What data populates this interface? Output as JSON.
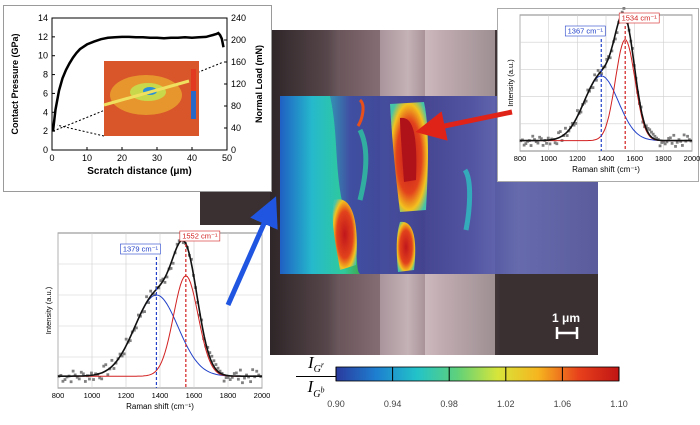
{
  "micrograph": {
    "scale_bar_label": "1 μm"
  },
  "colorbar": {
    "symbol_numerator": "I",
    "symbol_numerator_sub": "G",
    "symbol_numerator_sup": "r",
    "symbol_denominator": "I",
    "symbol_denominator_sub": "G",
    "symbol_denominator_sup": "b",
    "ticks": [
      "0.90",
      "0.94",
      "0.98",
      "1.02",
      "1.06",
      "1.10"
    ],
    "range": [
      0.9,
      1.1
    ],
    "colors": [
      "#2a3a9e",
      "#1e7fd0",
      "#22c3c9",
      "#5fd17a",
      "#d7e53a",
      "#f6b51f",
      "#e8411c",
      "#c01414"
    ]
  },
  "colors": {
    "fit_total": "#111111",
    "fit_red": "#d22020",
    "fit_blue": "#2342c8",
    "data_points": "#808080",
    "arrow_red": "#e02318",
    "arrow_blue": "#1f55e0"
  },
  "chart_data": [
    {
      "id": "scratch",
      "type": "line",
      "xlabel": "Scratch distance (μm)",
      "ylabel": "Contact Pressure (GPa)",
      "y2label": "Normal Load (mN)",
      "xlim": [
        0,
        50
      ],
      "ylim": [
        0,
        14
      ],
      "y2lim": [
        0,
        240
      ],
      "xticks": [
        "0",
        "10",
        "20",
        "30",
        "40",
        "50"
      ],
      "yticks": [
        "0",
        "2",
        "4",
        "6",
        "8",
        "10",
        "12",
        "14"
      ],
      "y2ticks": [
        "0",
        "40",
        "80",
        "120",
        "160",
        "200",
        "240"
      ],
      "series": [
        {
          "x": [
            0.3,
            1,
            2,
            3,
            4,
            5,
            6,
            7,
            8,
            10,
            12,
            14,
            16,
            18,
            20,
            22,
            24,
            26,
            28,
            30,
            32,
            34,
            36,
            38,
            40,
            42,
            44,
            45,
            46,
            47,
            47.5,
            48,
            48.5,
            49
          ],
          "y": [
            2.0,
            4.3,
            6.3,
            7.6,
            8.5,
            9.2,
            9.8,
            10.3,
            10.7,
            11.2,
            11.5,
            11.75,
            11.9,
            11.95,
            12.0,
            12.0,
            11.95,
            11.95,
            11.9,
            11.9,
            11.85,
            11.9,
            11.9,
            11.95,
            11.9,
            11.95,
            12.0,
            12.1,
            12.2,
            12.3,
            12.4,
            12.2,
            11.8,
            10.9
          ]
        }
      ],
      "grid": false
    },
    {
      "id": "raman_top",
      "type": "scatter",
      "xlabel": "Raman shift (cm⁻¹)",
      "ylabel": "Intensity (a.u.)",
      "xlim": [
        800,
        2000
      ],
      "xticks": [
        "800",
        "1000",
        "1200",
        "1400",
        "1600",
        "1800",
        "2000"
      ],
      "peak_labels": [
        {
          "text": "1367 cm⁻¹",
          "x": 1367,
          "series": "blue"
        },
        {
          "text": "1534 cm⁻¹",
          "x": 1534,
          "series": "red"
        }
      ],
      "components": [
        {
          "center": 1367,
          "fwhm": 280,
          "amplitude": 0.5
        },
        {
          "center": 1534,
          "fwhm": 160,
          "amplitude": 0.78
        }
      ],
      "grid": true
    },
    {
      "id": "raman_bottom",
      "type": "scatter",
      "xlabel": "Raman shift (cm⁻¹)",
      "ylabel": "Intensity (a.u.)",
      "xlim": [
        800,
        2000
      ],
      "xticks": [
        "800",
        "1000",
        "1200",
        "1400",
        "1600",
        "1800",
        "2000"
      ],
      "peak_labels": [
        {
          "text": "1379 cm⁻¹",
          "x": 1379,
          "series": "blue"
        },
        {
          "text": "1552 cm⁻¹",
          "x": 1552,
          "series": "red"
        }
      ],
      "components": [
        {
          "center": 1379,
          "fwhm": 300,
          "amplitude": 0.55
        },
        {
          "center": 1552,
          "fwhm": 170,
          "amplitude": 0.68
        }
      ],
      "grid": true
    }
  ]
}
